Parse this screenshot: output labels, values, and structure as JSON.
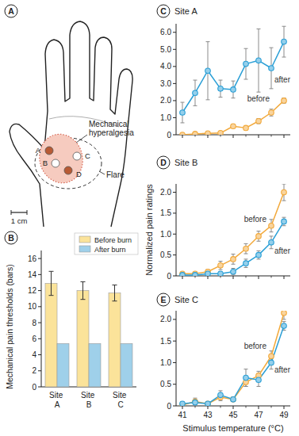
{
  "diagram": {
    "panel_label": "A",
    "hyperalgesia_label": "Mechanical hyperalgesia",
    "flare_label": "Flare",
    "scale_label": "1 cm",
    "sites": [
      {
        "label": "A",
        "color": "#b85a34"
      },
      {
        "label": "B",
        "color": "#ffffff"
      },
      {
        "label": "C",
        "color": "#ffffff"
      },
      {
        "label": "D",
        "color": "#b85a34"
      }
    ]
  },
  "chart_data": [
    {
      "type": "bar",
      "panel_label": "B",
      "categories": [
        "Site A",
        "Site B",
        "Site C"
      ],
      "ylabel": "Mechanical pain thresholds (bars)",
      "ylim": [
        0,
        17
      ],
      "yticks": [
        0,
        2,
        4,
        6,
        8,
        10,
        12,
        14,
        16
      ],
      "legend": "upper right",
      "series": [
        {
          "name": "Before burn",
          "color": "#fbe39a",
          "values": [
            12.9,
            12.0,
            11.7
          ],
          "errors": [
            1.5,
            1.1,
            1.0
          ]
        },
        {
          "name": "After burn",
          "color": "#9fd0ea",
          "values": [
            5.4,
            5.4,
            5.4
          ]
        }
      ]
    },
    {
      "type": "line",
      "panel_label": "C",
      "title": "Site A",
      "x": [
        41,
        42,
        43,
        44,
        45,
        46,
        47,
        48,
        49
      ],
      "xlim": [
        40.5,
        49.5
      ],
      "xticks": [
        41,
        43,
        45,
        47,
        49
      ],
      "ylim": [
        0,
        6.5
      ],
      "yticks": [
        0,
        {
          "value": 1,
          "label": "1.0"
        },
        {
          "value": 2,
          "label": "2.0"
        },
        {
          "value": 3,
          "label": "3.0"
        },
        {
          "value": 4,
          "label": "4.0"
        },
        {
          "value": 5,
          "label": "5.0"
        },
        {
          "value": 6,
          "label": "6.0"
        }
      ],
      "tick_labels": "y",
      "series": [
        {
          "name": "after",
          "color": "#2a9fd6",
          "marker": "circle",
          "values": [
            1.3,
            2.45,
            3.75,
            2.7,
            2.65,
            4.15,
            4.35,
            3.9,
            5.45
          ],
          "errors": [
            0.6,
            0.75,
            1.7,
            0.5,
            0.5,
            0.9,
            1.85,
            1.2,
            0.9
          ]
        },
        {
          "name": "before",
          "color": "#f2a93b",
          "marker": "circle",
          "values": [
            0.0,
            0.05,
            0.08,
            0.1,
            0.5,
            0.4,
            0.8,
            1.3,
            2.0
          ],
          "errors": [
            0.05,
            0.05,
            0.05,
            0.08,
            0.1,
            0.1,
            0.15,
            0.2,
            0.15
          ]
        }
      ]
    },
    {
      "type": "line",
      "panel_label": "D",
      "title": "Site B",
      "ylabel": "Normalized pain ratings",
      "x": [
        41,
        42,
        43,
        44,
        45,
        46,
        47,
        48,
        49
      ],
      "xlim": [
        40.5,
        49.5
      ],
      "xticks": [
        41,
        43,
        45,
        47,
        49
      ],
      "ylim": [
        0,
        2.2
      ],
      "yticks": [
        0,
        0.5,
        {
          "value": 1,
          "label": "1.0"
        },
        1.5,
        {
          "value": 2,
          "label": "2.0"
        }
      ],
      "tick_labels": "y",
      "series": [
        {
          "name": "before",
          "color": "#f2a93b",
          "marker": "circle",
          "values": [
            0.05,
            0.05,
            0.1,
            0.25,
            0.4,
            0.65,
            0.95,
            1.2,
            2.0
          ],
          "errors": [
            0.03,
            0.03,
            0.05,
            0.1,
            0.12,
            0.12,
            0.12,
            0.15,
            0.2
          ]
        },
        {
          "name": "after",
          "color": "#2a9fd6",
          "marker": "circle",
          "values": [
            0.02,
            0.02,
            0.05,
            0.05,
            0.1,
            0.3,
            0.5,
            0.8,
            1.3
          ],
          "errors": [
            0.02,
            0.02,
            0.03,
            0.05,
            0.08,
            0.1,
            0.1,
            0.15,
            0.1
          ]
        }
      ]
    },
    {
      "type": "line",
      "panel_label": "E",
      "title": "Site C",
      "xlabel": "Stimulus temperature (°C)",
      "x": [
        41,
        42,
        43,
        44,
        45,
        46,
        47,
        48,
        49
      ],
      "xlim": [
        40.5,
        49.5
      ],
      "xticks": [
        41,
        43,
        45,
        47,
        49
      ],
      "ylim": [
        0,
        2.2
      ],
      "yticks": [
        0,
        0.5,
        {
          "value": 1,
          "label": "1.0"
        },
        1.5,
        {
          "value": 2,
          "label": "2.0"
        }
      ],
      "series": [
        {
          "name": "before",
          "color": "#f2a93b",
          "marker": "circle",
          "values": [
            0.02,
            0.1,
            0.05,
            0.2,
            0.15,
            0.55,
            0.7,
            1.15,
            2.15
          ],
          "errors": [
            0.05,
            0.08,
            0.05,
            0.08,
            0.05,
            0.1,
            0.1,
            0.12,
            0.15
          ]
        },
        {
          "name": "after",
          "color": "#2a9fd6",
          "marker": "circle",
          "values": [
            0.05,
            0.08,
            0.05,
            0.25,
            0.15,
            0.65,
            0.6,
            1.0,
            1.85
          ],
          "errors": [
            0.05,
            0.05,
            0.05,
            0.1,
            0.05,
            0.2,
            0.15,
            0.15,
            0.1
          ]
        }
      ]
    }
  ]
}
